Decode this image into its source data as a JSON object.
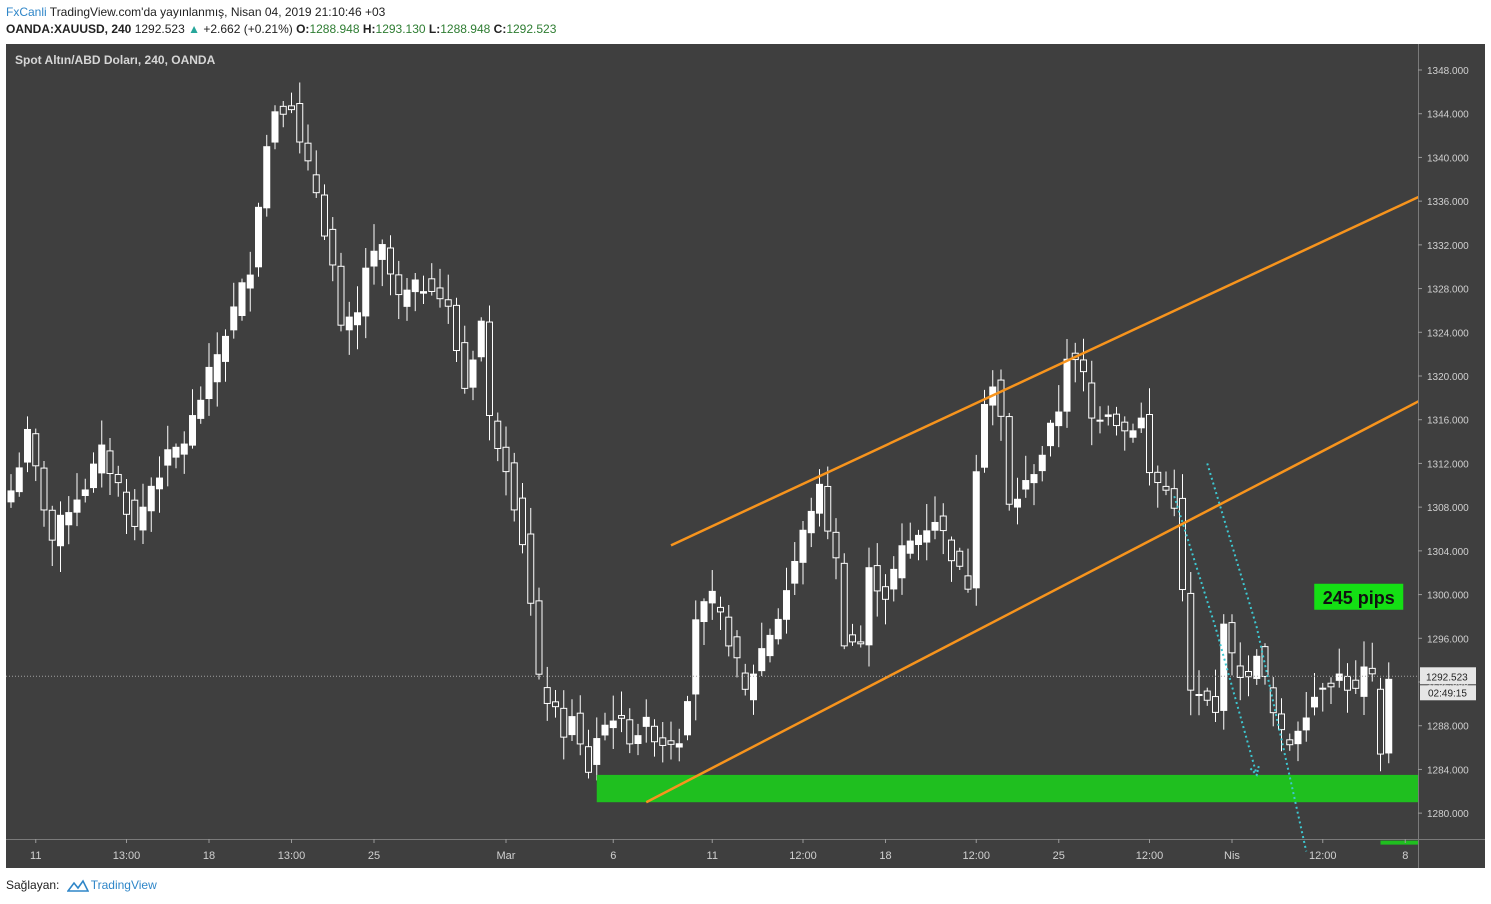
{
  "header": {
    "brand": "FxCanli",
    "published": " TradingView.com'da yayınlanmış, Nisan 04, 2019 21:10:46 +03",
    "symbol": "OANDA:XAUUSD, 240",
    "last": "1292.523",
    "change_arrow": "▲",
    "change": "+2.662 (+0.21%)",
    "o_label": "O:",
    "o_value": "1288.948",
    "h_label": "H:",
    "h_value": "1293.130",
    "l_label": "L:",
    "l_value": "1288.948",
    "c_label": "C:",
    "c_value": "1292.523"
  },
  "footer": {
    "label": "Sağlayan:",
    "provider": "TradingView"
  },
  "colors": {
    "background": "#3f3f3f",
    "candle": "#ffffff",
    "channel": "#f7941d",
    "support_zone": "#1fbf1f",
    "projection": "#3dc7d1",
    "label_bg": "#14e014"
  },
  "chart_data": {
    "type": "candlestick",
    "title": "Spot Altın/ABD Doları, 240, OANDA",
    "y_range": [
      1276.5,
      1350.0
    ],
    "y_ticks": [
      "1348.000",
      "1344.000",
      "1340.000",
      "1336.000",
      "1332.000",
      "1328.000",
      "1324.000",
      "1320.000",
      "1316.000",
      "1312.000",
      "1308.000",
      "1304.000",
      "1300.000",
      "1296.000",
      "1292.000",
      "1288.000",
      "1284.000",
      "1280.000"
    ],
    "x_ticks": [
      {
        "label": "11",
        "bar": 3
      },
      {
        "label": "13:00",
        "bar": 14
      },
      {
        "label": "18",
        "bar": 24
      },
      {
        "label": "13:00",
        "bar": 34
      },
      {
        "label": "25",
        "bar": 44
      },
      {
        "label": "Mar",
        "bar": 60
      },
      {
        "label": "6",
        "bar": 73
      },
      {
        "label": "11",
        "bar": 85
      },
      {
        "label": "12:00",
        "bar": 96
      },
      {
        "label": "18",
        "bar": 106
      },
      {
        "label": "12:00",
        "bar": 117
      },
      {
        "label": "25",
        "bar": 127
      },
      {
        "label": "12:00",
        "bar": 138
      },
      {
        "label": "Nis",
        "bar": 148
      },
      {
        "label": "12:00",
        "bar": 159
      },
      {
        "label": "8",
        "bar": 169
      }
    ],
    "last_price": "1292.523",
    "countdown": "02:49:15",
    "anchors": [
      {
        "bar": 0,
        "close": 1309.5
      },
      {
        "bar": 2,
        "close": 1314.5
      },
      {
        "bar": 5,
        "close": 1305.0
      },
      {
        "bar": 7,
        "close": 1308.0
      },
      {
        "bar": 9,
        "close": 1310.0
      },
      {
        "bar": 11,
        "close": 1313.0
      },
      {
        "bar": 13,
        "close": 1310.0
      },
      {
        "bar": 15,
        "close": 1306.0
      },
      {
        "bar": 17,
        "close": 1310.0
      },
      {
        "bar": 19,
        "close": 1312.5
      },
      {
        "bar": 21,
        "close": 1314.0
      },
      {
        "bar": 23,
        "close": 1318.0
      },
      {
        "bar": 25,
        "close": 1322.0
      },
      {
        "bar": 27,
        "close": 1326.0
      },
      {
        "bar": 29,
        "close": 1330.0
      },
      {
        "bar": 30,
        "close": 1336.0
      },
      {
        "bar": 31,
        "close": 1341.0
      },
      {
        "bar": 32,
        "close": 1344.5
      },
      {
        "bar": 34,
        "close": 1345.0
      },
      {
        "bar": 35,
        "close": 1341.0
      },
      {
        "bar": 37,
        "close": 1337.0
      },
      {
        "bar": 39,
        "close": 1330.0
      },
      {
        "bar": 40,
        "close": 1324.0
      },
      {
        "bar": 42,
        "close": 1325.5
      },
      {
        "bar": 43,
        "close": 1330.0
      },
      {
        "bar": 45,
        "close": 1331.5
      },
      {
        "bar": 47,
        "close": 1327.0
      },
      {
        "bar": 49,
        "close": 1328.0
      },
      {
        "bar": 51,
        "close": 1328.5
      },
      {
        "bar": 53,
        "close": 1326.0
      },
      {
        "bar": 55,
        "close": 1319.0
      },
      {
        "bar": 57,
        "close": 1325.0
      },
      {
        "bar": 58,
        "close": 1316.0
      },
      {
        "bar": 60,
        "close": 1312.0
      },
      {
        "bar": 62,
        "close": 1305.0
      },
      {
        "bar": 63,
        "close": 1299.0
      },
      {
        "bar": 64,
        "close": 1292.0
      },
      {
        "bar": 66,
        "close": 1289.0
      },
      {
        "bar": 67,
        "close": 1287.5
      },
      {
        "bar": 68,
        "close": 1288.5
      },
      {
        "bar": 69,
        "close": 1286.0
      },
      {
        "bar": 70,
        "close": 1284.0
      },
      {
        "bar": 71,
        "close": 1287.0
      },
      {
        "bar": 72,
        "close": 1288.0
      },
      {
        "bar": 73,
        "close": 1289.0
      },
      {
        "bar": 75,
        "close": 1287.0
      },
      {
        "bar": 77,
        "close": 1288.0
      },
      {
        "bar": 79,
        "close": 1286.5
      },
      {
        "bar": 81,
        "close": 1287.0
      },
      {
        "bar": 82,
        "close": 1291.0
      },
      {
        "bar": 83,
        "close": 1298.0
      },
      {
        "bar": 85,
        "close": 1299.5
      },
      {
        "bar": 87,
        "close": 1296.0
      },
      {
        "bar": 89,
        "close": 1291.0
      },
      {
        "bar": 91,
        "close": 1295.0
      },
      {
        "bar": 93,
        "close": 1298.0
      },
      {
        "bar": 95,
        "close": 1303.0
      },
      {
        "bar": 97,
        "close": 1308.0
      },
      {
        "bar": 98,
        "close": 1309.5
      },
      {
        "bar": 100,
        "close": 1303.0
      },
      {
        "bar": 101,
        "close": 1296.0
      },
      {
        "bar": 103,
        "close": 1295.5
      },
      {
        "bar": 104,
        "close": 1302.0
      },
      {
        "bar": 106,
        "close": 1300.0
      },
      {
        "bar": 108,
        "close": 1304.0
      },
      {
        "bar": 110,
        "close": 1305.5
      },
      {
        "bar": 112,
        "close": 1307.0
      },
      {
        "bar": 113,
        "close": 1305.5
      },
      {
        "bar": 115,
        "close": 1302.0
      },
      {
        "bar": 116,
        "close": 1301.0
      },
      {
        "bar": 117,
        "close": 1312.0
      },
      {
        "bar": 118,
        "close": 1318.0
      },
      {
        "bar": 119,
        "close": 1319.0
      },
      {
        "bar": 120,
        "close": 1316.0
      },
      {
        "bar": 121,
        "close": 1308.0
      },
      {
        "bar": 123,
        "close": 1310.0
      },
      {
        "bar": 125,
        "close": 1313.0
      },
      {
        "bar": 127,
        "close": 1317.0
      },
      {
        "bar": 128,
        "close": 1322.0
      },
      {
        "bar": 130,
        "close": 1320.0
      },
      {
        "bar": 131,
        "close": 1316.0
      },
      {
        "bar": 133,
        "close": 1317.0
      },
      {
        "bar": 135,
        "close": 1315.0
      },
      {
        "bar": 137,
        "close": 1316.0
      },
      {
        "bar": 138,
        "close": 1311.0
      },
      {
        "bar": 140,
        "close": 1309.5
      },
      {
        "bar": 141,
        "close": 1308.5
      },
      {
        "bar": 142,
        "close": 1300.0
      },
      {
        "bar": 143,
        "close": 1291.0
      },
      {
        "bar": 145,
        "close": 1290.0
      },
      {
        "bar": 146,
        "close": 1289.0
      },
      {
        "bar": 147,
        "close": 1298.0
      },
      {
        "bar": 148,
        "close": 1294.0
      },
      {
        "bar": 150,
        "close": 1292.0
      },
      {
        "bar": 151,
        "close": 1295.0
      },
      {
        "bar": 152,
        "close": 1292.0
      },
      {
        "bar": 153,
        "close": 1289.0
      },
      {
        "bar": 154,
        "close": 1287.0
      },
      {
        "bar": 155,
        "close": 1286.5
      },
      {
        "bar": 157,
        "close": 1289.5
      },
      {
        "bar": 159,
        "close": 1292.0
      },
      {
        "bar": 161,
        "close": 1292.5
      },
      {
        "bar": 163,
        "close": 1291.0
      },
      {
        "bar": 164,
        "close": 1293.0
      },
      {
        "bar": 165,
        "close": 1292.0
      },
      {
        "bar": 166,
        "close": 1285.0
      },
      {
        "bar": 167,
        "close": 1292.5
      }
    ],
    "annotations": {
      "upper_channel": {
        "from": {
          "bar": 80,
          "price": 1304.5
        },
        "to": {
          "bar": 188,
          "price": 1342.5
        }
      },
      "lower_channel": {
        "from": {
          "bar": 77,
          "price": 1281.0
        },
        "to": {
          "bar": 188,
          "price": 1324.5
        }
      },
      "support_zone": {
        "from_bar": 71,
        "to_bar": 188,
        "low": 1281.0,
        "high": 1283.5
      },
      "projection_1": [
        {
          "bar": 141,
          "price": 1309.0
        },
        {
          "bar": 146,
          "price": 1297.0
        },
        {
          "bar": 151,
          "price": 1283.5
        }
      ],
      "projection_2": [
        {
          "bar": 145,
          "price": 1312.0
        },
        {
          "bar": 151,
          "price": 1297.0
        },
        {
          "bar": 157,
          "price": 1276.5
        }
      ],
      "label": {
        "text": "245 pips",
        "bar": 157,
        "price": 1299.8
      },
      "green_tick": {
        "from_bar": 166,
        "to_bar": 188,
        "price": 1277.3
      }
    }
  }
}
